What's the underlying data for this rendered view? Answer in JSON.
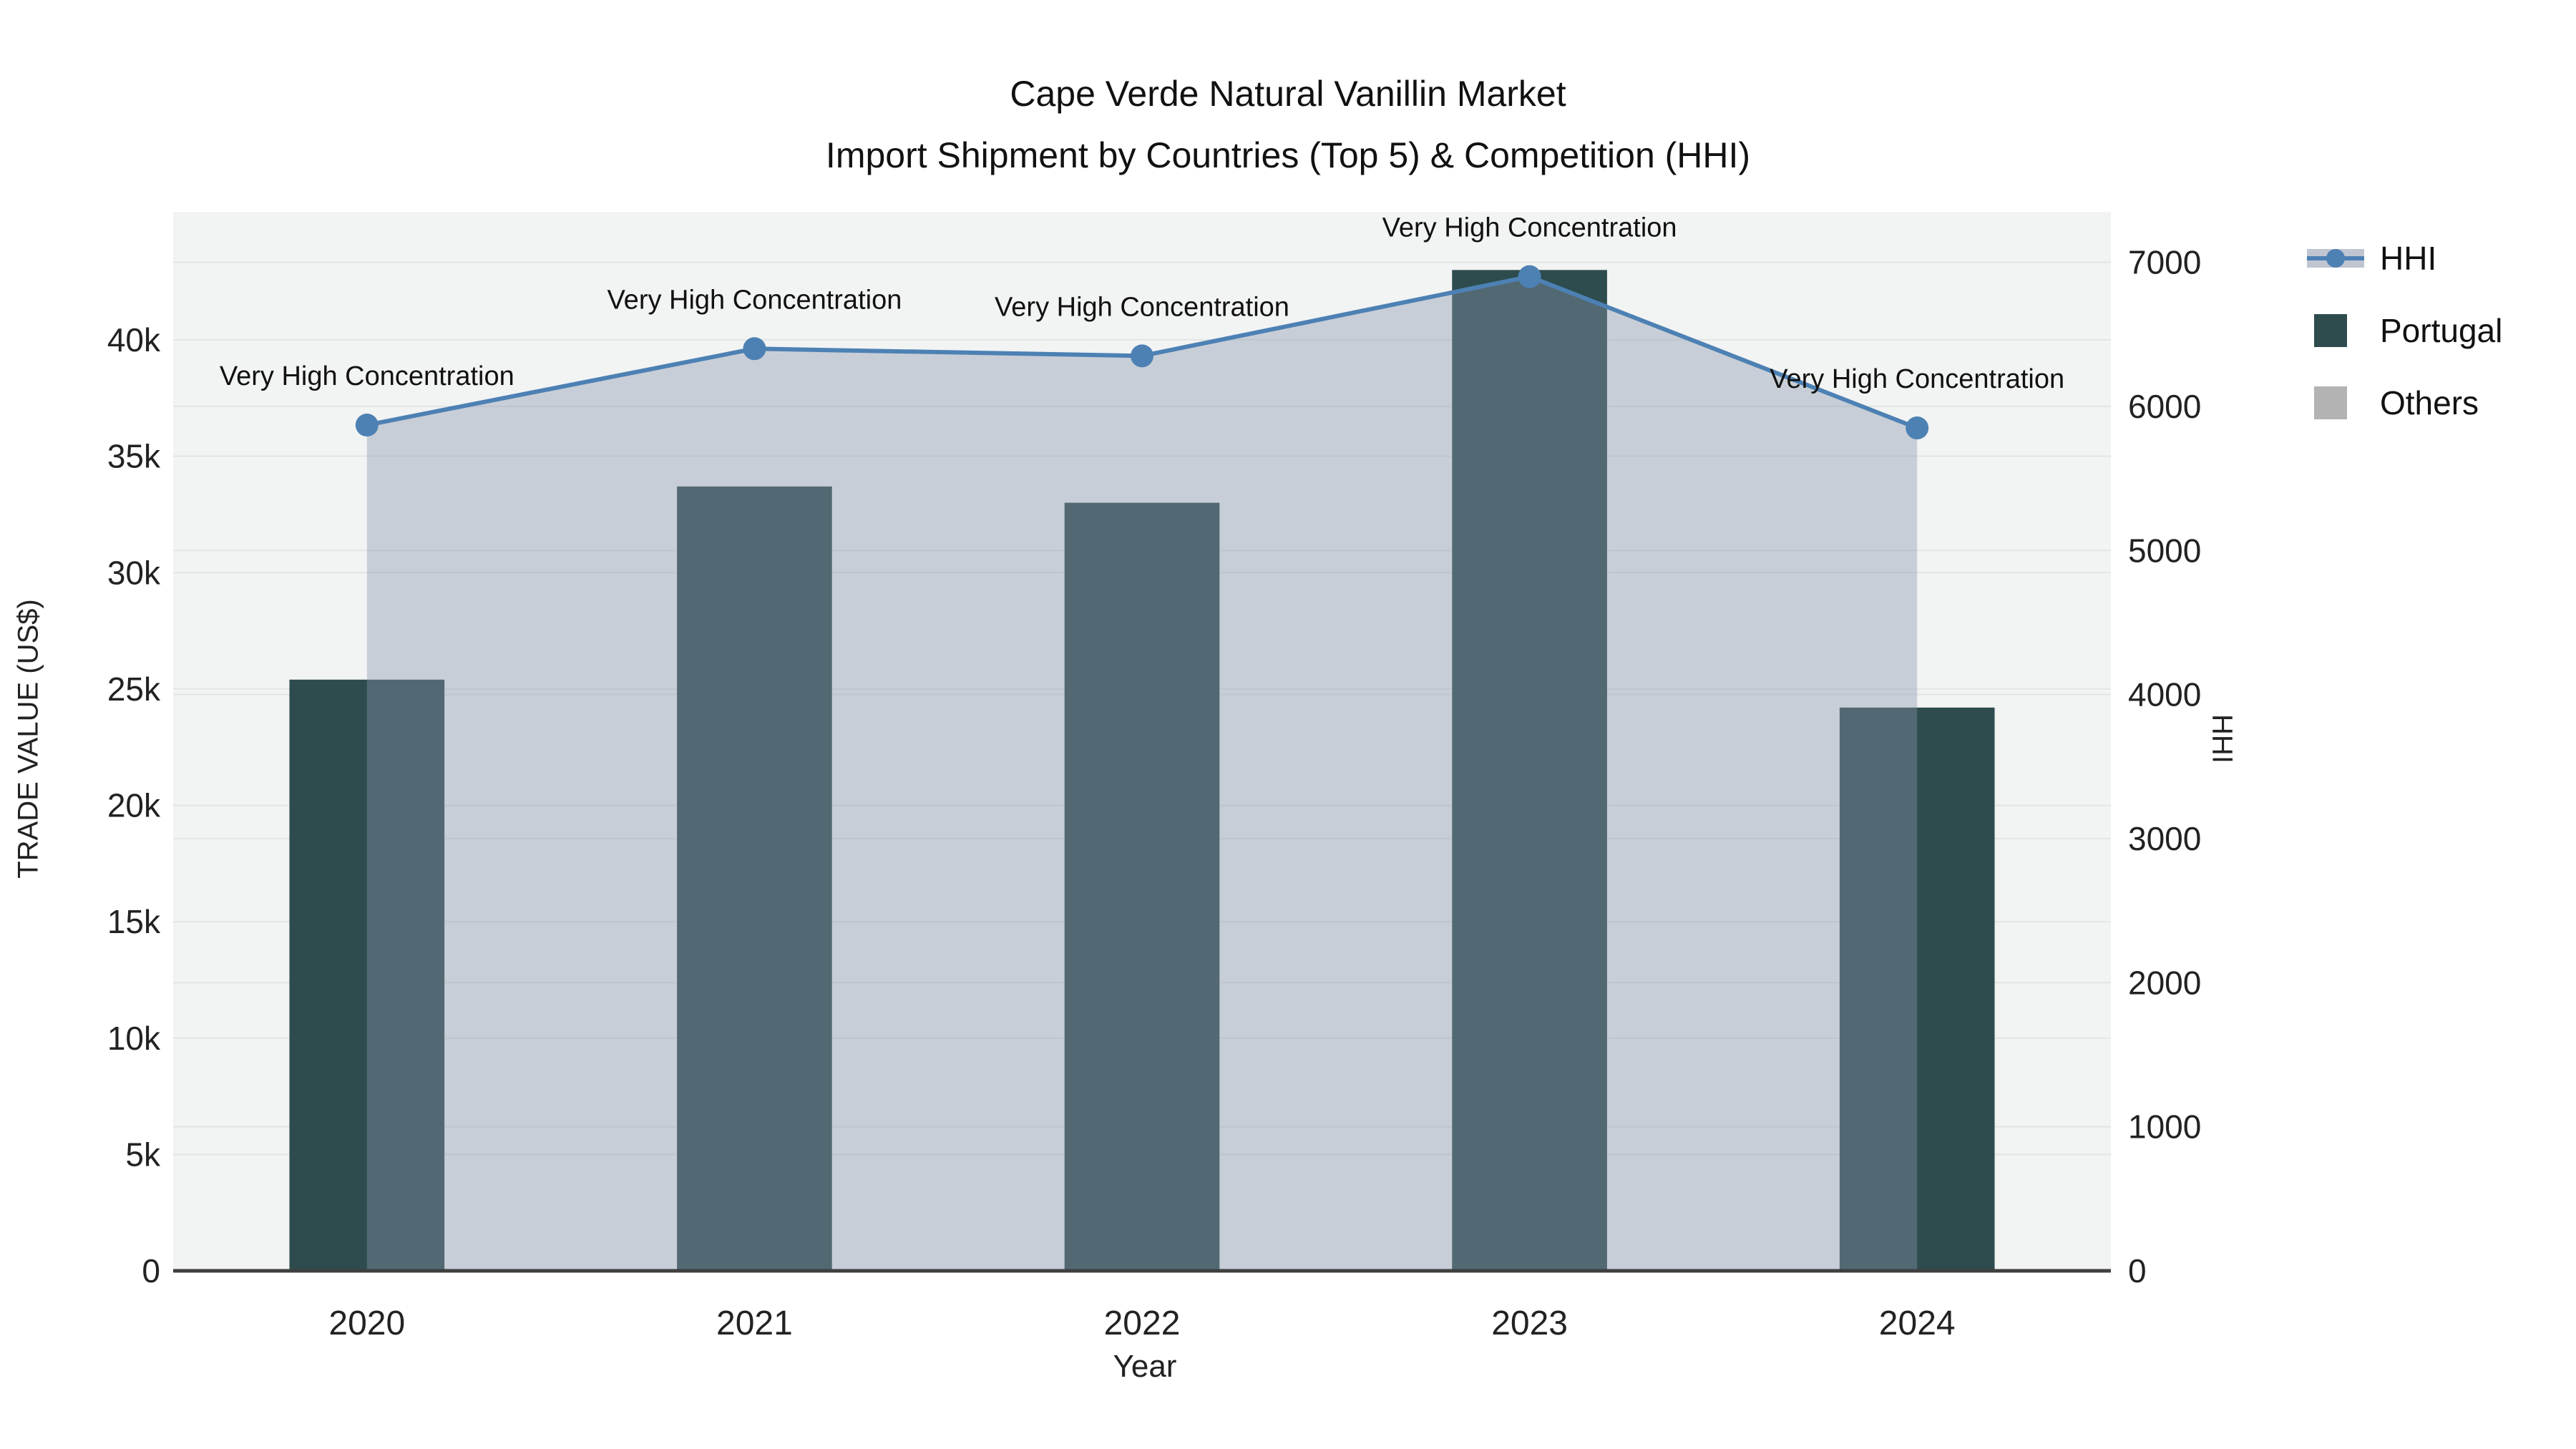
{
  "title": {
    "line1": "Cape Verde Natural Vanillin Market",
    "line2": "Import Shipment by Countries (Top 5) & Competition (HHI)"
  },
  "legend": {
    "items": [
      {
        "label": "HHI",
        "symbol": "line-marker-band",
        "color": "#4d81b4",
        "band_color": "rgba(138,149,172,0.55)"
      },
      {
        "label": "Portugal",
        "symbol": "square",
        "color": "#2e4c4d"
      },
      {
        "label": "Others",
        "symbol": "square",
        "color": "#b3b3b3"
      }
    ]
  },
  "axes": {
    "left": {
      "title": "TRADE VALUE (US$)",
      "range": [
        0,
        45500
      ],
      "ticks": [
        {
          "label": "0",
          "value": 0
        },
        {
          "label": "5k",
          "value": 5000
        },
        {
          "label": "10k",
          "value": 10000
        },
        {
          "label": "15k",
          "value": 15000
        },
        {
          "label": "20k",
          "value": 20000
        },
        {
          "label": "25k",
          "value": 25000
        },
        {
          "label": "30k",
          "value": 30000
        },
        {
          "label": "35k",
          "value": 35000
        },
        {
          "label": "40k",
          "value": 40000
        }
      ]
    },
    "right": {
      "title": "HHI",
      "range": [
        0,
        7350
      ],
      "ticks": [
        {
          "label": "0",
          "value": 0
        },
        {
          "label": "1000",
          "value": 1000
        },
        {
          "label": "2000",
          "value": 2000
        },
        {
          "label": "3000",
          "value": 3000
        },
        {
          "label": "4000",
          "value": 4000
        },
        {
          "label": "5000",
          "value": 5000
        },
        {
          "label": "6000",
          "value": 6000
        },
        {
          "label": "7000",
          "value": 7000
        }
      ]
    },
    "x": {
      "title": "Year",
      "categories": [
        "2020",
        "2021",
        "2022",
        "2023",
        "2024"
      ]
    }
  },
  "chart_data": {
    "type": "combo-bar-line",
    "title": "Cape Verde Natural Vanillin Market - Import Shipment by Countries (Top 5) & Competition (HHI)",
    "categories": [
      "2020",
      "2021",
      "2022",
      "2023",
      "2024"
    ],
    "series": [
      {
        "name": "Portugal",
        "type": "bar",
        "axis": "left",
        "color": "#2e4c4d",
        "values": [
          25400,
          33700,
          33000,
          43000,
          24200
        ]
      },
      {
        "name": "Others",
        "type": "bar",
        "axis": "left",
        "color": "#b3b3b3",
        "values": [
          0,
          0,
          0,
          0,
          0
        ]
      },
      {
        "name": "HHI",
        "type": "line",
        "axis": "right",
        "color": "#4d81b4",
        "fill": "tozeroy",
        "fill_color": "rgba(138,149,172,0.4)",
        "marker": "circle",
        "values": [
          5870,
          6400,
          6350,
          6900,
          5850
        ]
      }
    ],
    "point_annotations": [
      "Very High Concentration",
      "Very High Concentration",
      "Very High Concentration",
      "Very High Concentration",
      "Very High Concentration"
    ],
    "xlabel": "Year",
    "ylabel_left": "TRADE VALUE (US$)",
    "ylabel_right": "HHI",
    "ylim_left": [
      0,
      45500
    ],
    "ylim_right": [
      0,
      7350
    ],
    "grid": true,
    "legend_position": "right-top",
    "plot_bg": "#f2f3f3",
    "axis_line_color": "#3f3f3f",
    "grid_color": "#e3e5e5"
  }
}
